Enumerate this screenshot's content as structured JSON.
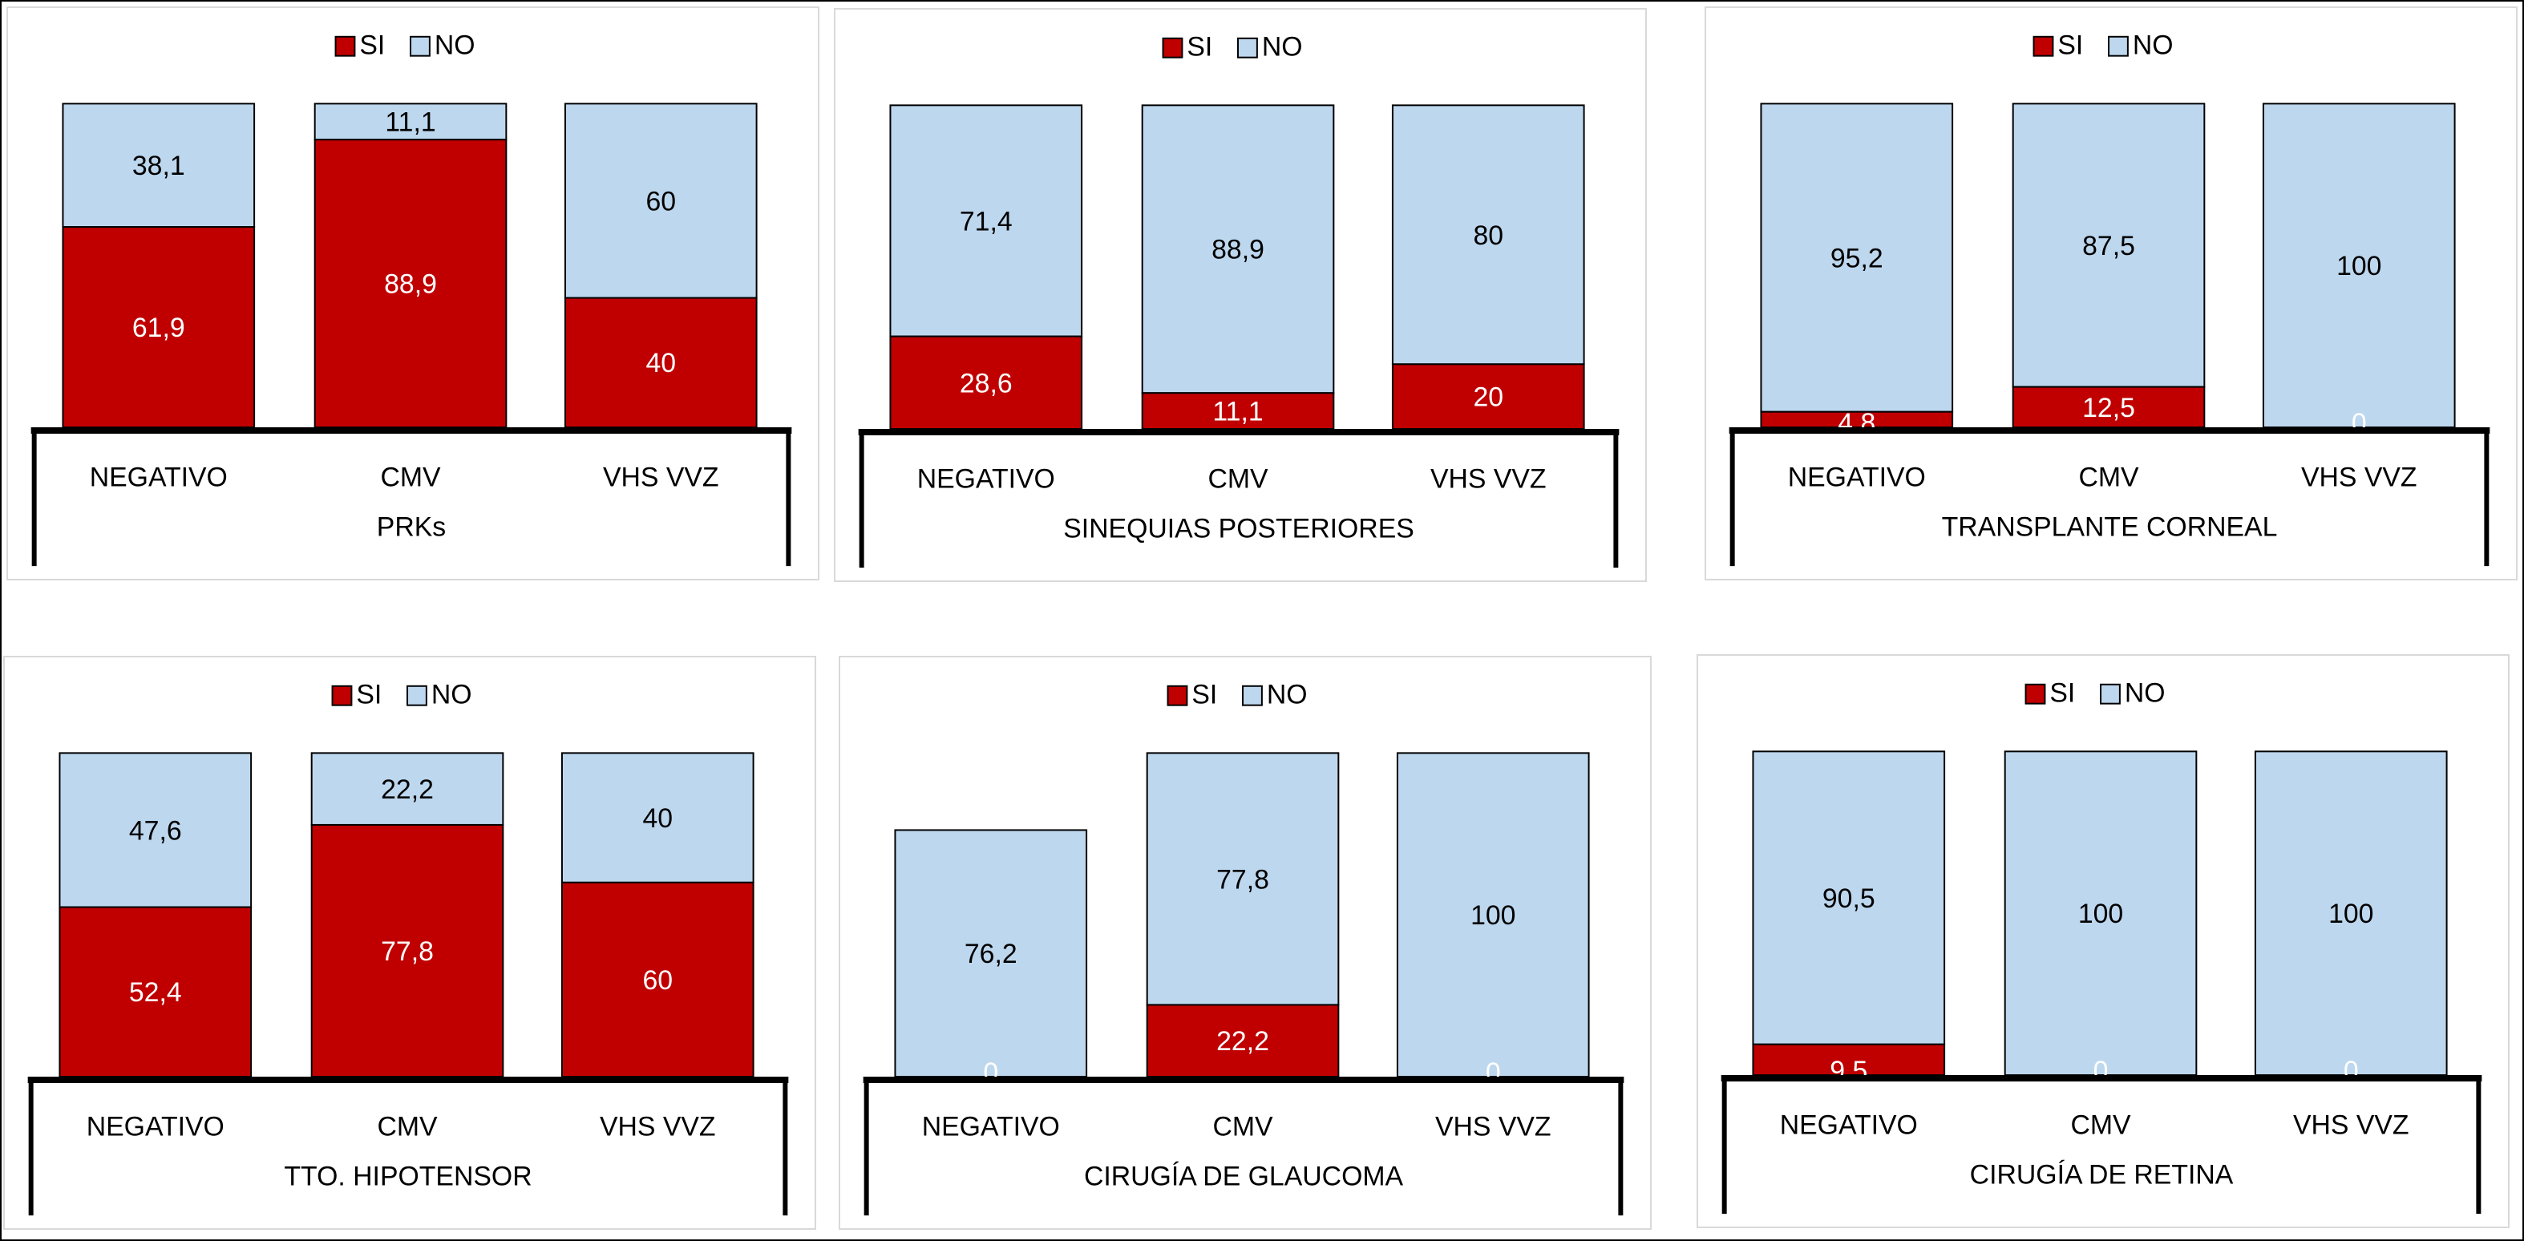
{
  "colors": {
    "SI": "#c00000",
    "NO": "#bdd7ee"
  },
  "chart_data": [
    {
      "type": "bar",
      "stacked": true,
      "percent": true,
      "title": "PRKs",
      "categories": [
        "NEGATIVO",
        "CMV",
        "VHS VVZ"
      ],
      "series": [
        {
          "name": "SI",
          "values": [
            61.9,
            88.9,
            40
          ]
        },
        {
          "name": "NO",
          "values": [
            38.1,
            11.1,
            60
          ]
        }
      ],
      "labels": {
        "SI": [
          "61,9",
          "88,9",
          "40"
        ],
        "NO": [
          "38,1",
          "11,1",
          "60"
        ]
      },
      "legend": "top",
      "grid": false,
      "ylim": [
        0,
        100
      ]
    },
    {
      "type": "bar",
      "stacked": true,
      "percent": true,
      "title": "SINEQUIAS POSTERIORES",
      "categories": [
        "NEGATIVO",
        "CMV",
        "VHS VVZ"
      ],
      "series": [
        {
          "name": "SI",
          "values": [
            28.6,
            11.1,
            20
          ]
        },
        {
          "name": "NO",
          "values": [
            71.4,
            88.9,
            80
          ]
        }
      ],
      "labels": {
        "SI": [
          "28,6",
          "11,1",
          "20"
        ],
        "NO": [
          "71,4",
          "88,9",
          "80"
        ]
      },
      "legend": "top",
      "grid": false,
      "ylim": [
        0,
        100
      ]
    },
    {
      "type": "bar",
      "stacked": true,
      "percent": true,
      "title": "TRANSPLANTE CORNEAL",
      "categories": [
        "NEGATIVO",
        "CMV",
        "VHS VVZ"
      ],
      "series": [
        {
          "name": "SI",
          "values": [
            4.8,
            12.5,
            0
          ]
        },
        {
          "name": "NO",
          "values": [
            95.2,
            87.5,
            100
          ]
        }
      ],
      "labels": {
        "SI": [
          "4,8",
          "12,5",
          "0"
        ],
        "NO": [
          "95,2",
          "87,5",
          "100"
        ]
      },
      "legend": "top",
      "grid": false,
      "ylim": [
        0,
        100
      ]
    },
    {
      "type": "bar",
      "stacked": true,
      "percent": true,
      "title": "TTO. HIPOTENSOR",
      "categories": [
        "NEGATIVO",
        "CMV",
        "VHS VVZ"
      ],
      "series": [
        {
          "name": "SI",
          "values": [
            52.4,
            77.8,
            60
          ]
        },
        {
          "name": "NO",
          "values": [
            47.6,
            22.2,
            40
          ]
        }
      ],
      "labels": {
        "SI": [
          "52,4",
          "77,8",
          "60"
        ],
        "NO": [
          "47,6",
          "22,2",
          "40"
        ]
      },
      "legend": "top",
      "grid": false,
      "ylim": [
        0,
        100
      ]
    },
    {
      "type": "bar",
      "stacked": true,
      "percent": true,
      "title": "CIRUGÍA DE GLAUCOMA",
      "categories": [
        "NEGATIVO",
        "CMV",
        "VHS VVZ"
      ],
      "series": [
        {
          "name": "SI",
          "values": [
            0,
            22.2,
            0
          ]
        },
        {
          "name": "NO",
          "values": [
            76.2,
            77.8,
            100
          ]
        }
      ],
      "labels": {
        "SI": [
          "0",
          "22,2",
          "0"
        ],
        "NO": [
          "76,2",
          "77,8",
          "100"
        ]
      },
      "legend": "top",
      "grid": false,
      "ylim": [
        0,
        100
      ]
    },
    {
      "type": "bar",
      "stacked": true,
      "percent": true,
      "title": "CIRUGÍA DE RETINA",
      "categories": [
        "NEGATIVO",
        "CMV",
        "VHS VVZ"
      ],
      "series": [
        {
          "name": "SI",
          "values": [
            9.5,
            0,
            0
          ]
        },
        {
          "name": "NO",
          "values": [
            90.5,
            100,
            100
          ]
        }
      ],
      "labels": {
        "SI": [
          "9,5",
          "0",
          "0"
        ],
        "NO": [
          "90,5",
          "100",
          "100"
        ]
      },
      "legend": "top",
      "grid": false,
      "ylim": [
        0,
        100
      ]
    }
  ]
}
